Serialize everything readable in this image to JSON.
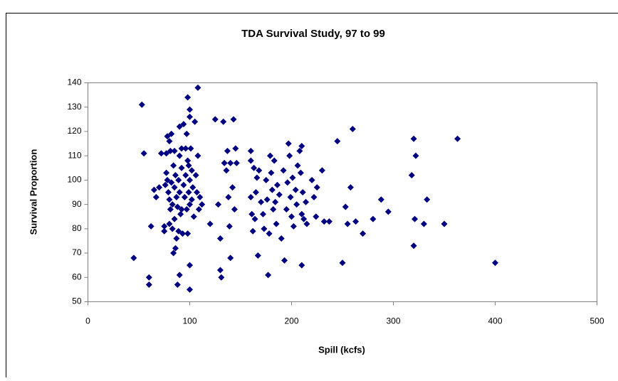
{
  "chart_data": {
    "type": "scatter",
    "title": "TDA Survival Study, 97 to 99",
    "xlabel": "Spill (kcfs)",
    "ylabel": "Survival Proportion",
    "color": "#000080",
    "marker": "diamond",
    "grid": false,
    "xlim": [
      0,
      500
    ],
    "xticks": [
      0,
      100,
      200,
      300,
      400,
      500
    ],
    "ylim": [
      50,
      140
    ],
    "yticks": [
      50,
      60,
      70,
      80,
      90,
      100,
      110,
      120,
      130,
      140
    ],
    "x": [
      45,
      53,
      55,
      60,
      60,
      62,
      65,
      67,
      70,
      72,
      75,
      75,
      76,
      77,
      77,
      78,
      78,
      79,
      80,
      80,
      80,
      81,
      81,
      82,
      82,
      83,
      83,
      84,
      84,
      85,
      85,
      85,
      86,
      86,
      87,
      87,
      88,
      88,
      89,
      89,
      90,
      90,
      90,
      90,
      91,
      92,
      92,
      92,
      93,
      94,
      94,
      95,
      96,
      96,
      97,
      97,
      98,
      98,
      98,
      99,
      99,
      100,
      100,
      100,
      100,
      100,
      100,
      101,
      102,
      102,
      103,
      104,
      105,
      106,
      107,
      108,
      108,
      109,
      110,
      112,
      120,
      125,
      128,
      130,
      130,
      131,
      133,
      134,
      136,
      137,
      138,
      139,
      140,
      140,
      142,
      143,
      144,
      145,
      146,
      160,
      160,
      160,
      161,
      162,
      163,
      164,
      165,
      166,
      167,
      168,
      170,
      172,
      173,
      175,
      176,
      177,
      178,
      179,
      180,
      181,
      182,
      183,
      184,
      185,
      186,
      188,
      190,
      192,
      193,
      195,
      196,
      197,
      198,
      199,
      200,
      201,
      202,
      204,
      205,
      206,
      208,
      209,
      210,
      210,
      210,
      211,
      212,
      214,
      215,
      220,
      222,
      224,
      225,
      230,
      232,
      237,
      245,
      250,
      253,
      255,
      258,
      260,
      263,
      270,
      280,
      288,
      295,
      318,
      320,
      320,
      321,
      322,
      330,
      333,
      350,
      363,
      400
    ],
    "y": [
      68,
      131,
      111,
      60,
      57,
      81,
      96,
      93,
      97,
      111,
      81,
      79,
      98,
      111,
      103,
      118,
      100,
      95,
      116,
      92,
      82,
      112,
      88,
      119,
      99,
      80,
      90,
      106,
      70,
      112,
      97,
      84,
      72,
      102,
      93,
      76,
      89,
      57,
      100,
      79,
      122,
      110,
      95,
      61,
      86,
      113,
      105,
      88,
      78,
      123,
      98,
      93,
      113,
      102,
      119,
      88,
      134,
      108,
      78,
      106,
      95,
      129,
      126,
      100,
      90,
      65,
      55,
      113,
      104,
      92,
      97,
      85,
      124,
      102,
      95,
      138,
      110,
      88,
      93,
      90,
      82,
      125,
      90,
      76,
      63,
      60,
      124,
      107,
      104,
      112,
      93,
      81,
      68,
      107,
      97,
      125,
      88,
      113,
      107,
      112,
      108,
      93,
      86,
      79,
      105,
      84,
      95,
      101,
      69,
      104,
      91,
      86,
      80,
      100,
      92,
      61,
      78,
      110,
      103,
      96,
      88,
      108,
      91,
      82,
      98,
      94,
      76,
      104,
      67,
      88,
      99,
      115,
      110,
      93,
      85,
      101,
      81,
      96,
      90,
      106,
      112,
      103,
      65,
      114,
      86,
      95,
      84,
      91,
      82,
      100,
      93,
      85,
      97,
      104,
      83,
      83,
      116,
      66,
      89,
      82,
      97,
      121,
      83,
      78,
      84,
      92,
      87,
      102,
      117,
      73,
      84,
      110,
      82,
      92,
      82,
      117,
      66
    ]
  }
}
